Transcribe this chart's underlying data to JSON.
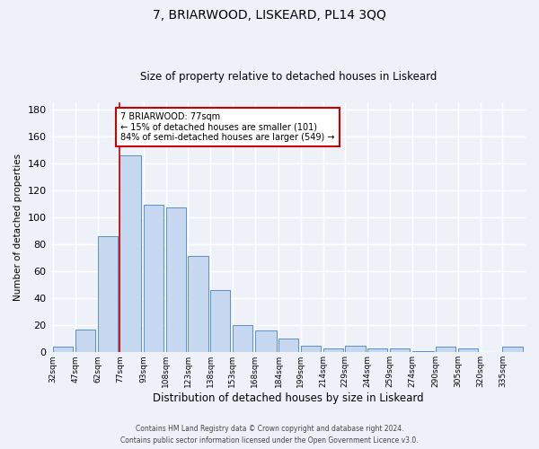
{
  "title": "7, BRIARWOOD, LISKEARD, PL14 3QQ",
  "subtitle": "Size of property relative to detached houses in Liskeard",
  "xlabel": "Distribution of detached houses by size in Liskeard",
  "ylabel": "Number of detached properties",
  "footer_line1": "Contains HM Land Registry data © Crown copyright and database right 2024.",
  "footer_line2": "Contains public sector information licensed under the Open Government Licence v3.0.",
  "bins": [
    32,
    47,
    62,
    77,
    93,
    108,
    123,
    138,
    153,
    168,
    184,
    199,
    214,
    229,
    244,
    259,
    274,
    290,
    305,
    320,
    335
  ],
  "bin_labels": [
    "32sqm",
    "47sqm",
    "62sqm",
    "77sqm",
    "93sqm",
    "108sqm",
    "123sqm",
    "138sqm",
    "153sqm",
    "168sqm",
    "184sqm",
    "199sqm",
    "214sqm",
    "229sqm",
    "244sqm",
    "259sqm",
    "274sqm",
    "290sqm",
    "305sqm",
    "320sqm",
    "335sqm"
  ],
  "values": [
    4,
    17,
    86,
    146,
    109,
    107,
    71,
    46,
    20,
    16,
    10,
    5,
    3,
    5,
    3,
    3,
    1,
    4,
    3,
    0,
    4
  ],
  "bar_color": "#c5d8f0",
  "bar_edge_color": "#5b8fc9",
  "background_color": "#eef2f8",
  "vline_x": 77,
  "vline_color": "#cc0000",
  "annotation_text": "7 BRIARWOOD: 77sqm\n← 15% of detached houses are smaller (101)\n84% of semi-detached houses are larger (549) →",
  "annotation_box_color": "#ffffff",
  "annotation_box_edge_color": "#cc0000",
  "ylim": [
    0,
    185
  ],
  "yticks": [
    0,
    20,
    40,
    60,
    80,
    100,
    120,
    140,
    160,
    180
  ]
}
